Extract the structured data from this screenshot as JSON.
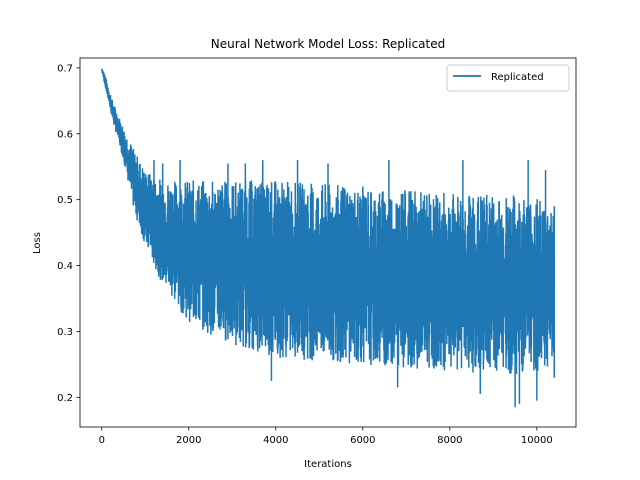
{
  "chart_data": {
    "type": "line",
    "title": "Neural Network Model Loss: Replicated",
    "xlabel": "Iterations",
    "ylabel": "Loss",
    "xlim": [
      -500,
      10900
    ],
    "ylim": [
      0.155,
      0.715
    ],
    "xticks": [
      0,
      2000,
      4000,
      6000,
      8000,
      10000
    ],
    "yticks": [
      0.2,
      0.3,
      0.4,
      0.5,
      0.6,
      0.7
    ],
    "x_range": [
      0,
      10400
    ],
    "grid": false,
    "legend_position": "top-right",
    "series": [
      {
        "name": "Replicated",
        "color": "#1f77b4",
        "envelope": {
          "x": [
            0,
            50,
            250,
            500,
            750,
            1000,
            1250,
            1500,
            1750,
            2000,
            2500,
            3000,
            3500,
            4000,
            5000,
            6000,
            7000,
            8000,
            9000,
            10000,
            10400
          ],
          "upper": [
            0.7,
            0.695,
            0.65,
            0.61,
            0.575,
            0.545,
            0.535,
            0.53,
            0.53,
            0.53,
            0.53,
            0.53,
            0.53,
            0.53,
            0.525,
            0.52,
            0.515,
            0.51,
            0.51,
            0.505,
            0.49
          ],
          "lower": [
            0.695,
            0.68,
            0.62,
            0.56,
            0.48,
            0.43,
            0.39,
            0.36,
            0.335,
            0.315,
            0.295,
            0.28,
            0.27,
            0.26,
            0.255,
            0.25,
            0.245,
            0.24,
            0.235,
            0.235,
            0.24
          ]
        },
        "spikes": [
          {
            "x": 1200,
            "y": 0.56
          },
          {
            "x": 1400,
            "y": 0.555
          },
          {
            "x": 1800,
            "y": 0.56
          },
          {
            "x": 2900,
            "y": 0.555
          },
          {
            "x": 3300,
            "y": 0.555
          },
          {
            "x": 3700,
            "y": 0.56
          },
          {
            "x": 4500,
            "y": 0.56
          },
          {
            "x": 5200,
            "y": 0.555
          },
          {
            "x": 6600,
            "y": 0.56
          },
          {
            "x": 8300,
            "y": 0.56
          },
          {
            "x": 9800,
            "y": 0.56
          },
          {
            "x": 10200,
            "y": 0.545
          },
          {
            "x": 3900,
            "y": 0.225
          },
          {
            "x": 6800,
            "y": 0.215
          },
          {
            "x": 8700,
            "y": 0.205
          },
          {
            "x": 9500,
            "y": 0.185
          },
          {
            "x": 9600,
            "y": 0.19
          },
          {
            "x": 10000,
            "y": 0.195
          }
        ]
      }
    ]
  }
}
